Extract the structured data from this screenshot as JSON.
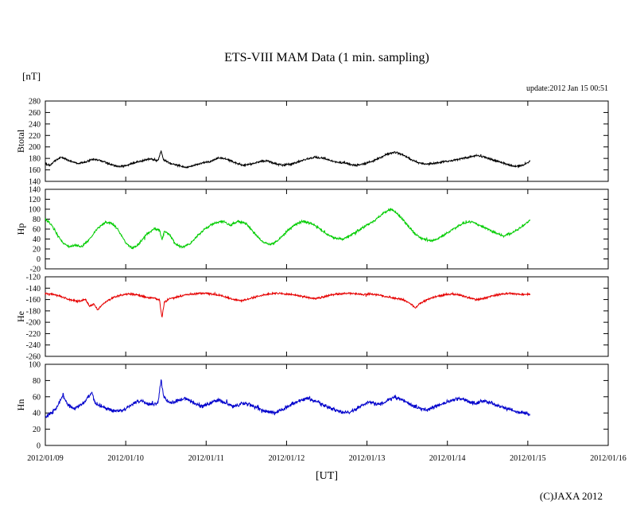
{
  "figure": {
    "title": "ETS-VIII MAM Data (1 min. sampling)",
    "unit_label": "[nT]",
    "update_label": "update:2012 Jan 15 00:51",
    "xaxis_label": "[UT]",
    "copyright": "(C)JAXA 2012"
  },
  "chart_data": {
    "type": "line",
    "title": "ETS-VIII MAM Data (1 min. sampling)",
    "xlabel": "[UT]",
    "ylabel": "[nT]",
    "grid": false,
    "legend_position": "none",
    "x_tick_labels": [
      "2012/01/09",
      "2012/01/10",
      "2012/01/11",
      "2012/01/12",
      "2012/01/13",
      "2012/01/14",
      "2012/01/15",
      "2012/01/16"
    ],
    "x_range_days": [
      0,
      7
    ],
    "data_end_day": 6.03,
    "panels": [
      {
        "name": "Btotal",
        "color": "#000000",
        "ylim": [
          140,
          280
        ],
        "ytick_step": 20,
        "noise": 2.0,
        "points": [
          [
            0.0,
            171
          ],
          [
            0.06,
            168
          ],
          [
            0.12,
            176
          ],
          [
            0.2,
            182
          ],
          [
            0.3,
            176
          ],
          [
            0.4,
            171
          ],
          [
            0.5,
            174
          ],
          [
            0.6,
            179
          ],
          [
            0.7,
            176
          ],
          [
            0.8,
            170
          ],
          [
            0.9,
            166
          ],
          [
            1.0,
            167
          ],
          [
            1.1,
            172
          ],
          [
            1.2,
            176
          ],
          [
            1.3,
            179
          ],
          [
            1.4,
            176
          ],
          [
            1.44,
            193
          ],
          [
            1.47,
            178
          ],
          [
            1.55,
            171
          ],
          [
            1.65,
            168
          ],
          [
            1.75,
            164
          ],
          [
            1.85,
            168
          ],
          [
            1.95,
            172
          ],
          [
            2.05,
            174
          ],
          [
            2.15,
            181
          ],
          [
            2.25,
            179
          ],
          [
            2.35,
            173
          ],
          [
            2.45,
            168
          ],
          [
            2.55,
            170
          ],
          [
            2.65,
            174
          ],
          [
            2.75,
            176
          ],
          [
            2.85,
            171
          ],
          [
            2.95,
            168
          ],
          [
            3.05,
            170
          ],
          [
            3.15,
            174
          ],
          [
            3.25,
            179
          ],
          [
            3.35,
            182
          ],
          [
            3.45,
            181
          ],
          [
            3.55,
            176
          ],
          [
            3.65,
            173
          ],
          [
            3.75,
            171
          ],
          [
            3.85,
            168
          ],
          [
            3.95,
            170
          ],
          [
            4.05,
            174
          ],
          [
            4.15,
            180
          ],
          [
            4.25,
            188
          ],
          [
            4.35,
            191
          ],
          [
            4.45,
            186
          ],
          [
            4.55,
            178
          ],
          [
            4.65,
            172
          ],
          [
            4.75,
            170
          ],
          [
            4.85,
            172
          ],
          [
            4.95,
            174
          ],
          [
            5.05,
            176
          ],
          [
            5.15,
            179
          ],
          [
            5.25,
            182
          ],
          [
            5.35,
            185
          ],
          [
            5.45,
            183
          ],
          [
            5.55,
            178
          ],
          [
            5.65,
            174
          ],
          [
            5.75,
            169
          ],
          [
            5.85,
            166
          ],
          [
            5.95,
            169
          ],
          [
            6.03,
            175
          ]
        ]
      },
      {
        "name": "Hp",
        "color": "#00cc00",
        "ylim": [
          -20,
          140
        ],
        "ytick_step": 20,
        "noise": 2.8,
        "points": [
          [
            0.0,
            80
          ],
          [
            0.08,
            68
          ],
          [
            0.15,
            48
          ],
          [
            0.22,
            32
          ],
          [
            0.3,
            25
          ],
          [
            0.38,
            28
          ],
          [
            0.45,
            24
          ],
          [
            0.55,
            40
          ],
          [
            0.65,
            62
          ],
          [
            0.75,
            74
          ],
          [
            0.82,
            72
          ],
          [
            0.9,
            60
          ],
          [
            1.0,
            32
          ],
          [
            1.08,
            22
          ],
          [
            1.15,
            28
          ],
          [
            1.25,
            48
          ],
          [
            1.35,
            60
          ],
          [
            1.42,
            58
          ],
          [
            1.45,
            38
          ],
          [
            1.48,
            55
          ],
          [
            1.55,
            48
          ],
          [
            1.62,
            30
          ],
          [
            1.7,
            24
          ],
          [
            1.8,
            30
          ],
          [
            1.9,
            48
          ],
          [
            2.0,
            62
          ],
          [
            2.1,
            72
          ],
          [
            2.2,
            76
          ],
          [
            2.3,
            68
          ],
          [
            2.4,
            76
          ],
          [
            2.5,
            70
          ],
          [
            2.6,
            52
          ],
          [
            2.7,
            34
          ],
          [
            2.8,
            28
          ],
          [
            2.9,
            38
          ],
          [
            3.0,
            55
          ],
          [
            3.1,
            68
          ],
          [
            3.2,
            76
          ],
          [
            3.3,
            72
          ],
          [
            3.4,
            62
          ],
          [
            3.5,
            50
          ],
          [
            3.6,
            42
          ],
          [
            3.7,
            40
          ],
          [
            3.8,
            48
          ],
          [
            3.9,
            58
          ],
          [
            4.0,
            68
          ],
          [
            4.1,
            78
          ],
          [
            4.2,
            92
          ],
          [
            4.3,
            100
          ],
          [
            4.4,
            88
          ],
          [
            4.5,
            68
          ],
          [
            4.6,
            50
          ],
          [
            4.7,
            40
          ],
          [
            4.8,
            36
          ],
          [
            4.9,
            42
          ],
          [
            5.0,
            52
          ],
          [
            5.1,
            62
          ],
          [
            5.2,
            72
          ],
          [
            5.3,
            75
          ],
          [
            5.4,
            68
          ],
          [
            5.5,
            60
          ],
          [
            5.6,
            52
          ],
          [
            5.7,
            46
          ],
          [
            5.8,
            52
          ],
          [
            5.9,
            62
          ],
          [
            6.03,
            78
          ]
        ]
      },
      {
        "name": "He",
        "color": "#e60000",
        "ylim": [
          -260,
          -120
        ],
        "ytick_step": 20,
        "noise": 2.0,
        "points": [
          [
            0.0,
            -149
          ],
          [
            0.1,
            -151
          ],
          [
            0.2,
            -155
          ],
          [
            0.3,
            -160
          ],
          [
            0.4,
            -163
          ],
          [
            0.5,
            -160
          ],
          [
            0.55,
            -172
          ],
          [
            0.6,
            -168
          ],
          [
            0.65,
            -178
          ],
          [
            0.7,
            -170
          ],
          [
            0.78,
            -162
          ],
          [
            0.85,
            -156
          ],
          [
            0.95,
            -152
          ],
          [
            1.05,
            -150
          ],
          [
            1.15,
            -152
          ],
          [
            1.25,
            -156
          ],
          [
            1.35,
            -158
          ],
          [
            1.42,
            -160
          ],
          [
            1.45,
            -192
          ],
          [
            1.48,
            -165
          ],
          [
            1.55,
            -158
          ],
          [
            1.65,
            -155
          ],
          [
            1.75,
            -152
          ],
          [
            1.85,
            -150
          ],
          [
            1.95,
            -149
          ],
          [
            2.05,
            -150
          ],
          [
            2.15,
            -152
          ],
          [
            2.25,
            -156
          ],
          [
            2.35,
            -160
          ],
          [
            2.45,
            -162
          ],
          [
            2.55,
            -158
          ],
          [
            2.65,
            -154
          ],
          [
            2.75,
            -151
          ],
          [
            2.85,
            -149
          ],
          [
            2.95,
            -150
          ],
          [
            3.05,
            -151
          ],
          [
            3.15,
            -153
          ],
          [
            3.25,
            -156
          ],
          [
            3.35,
            -158
          ],
          [
            3.45,
            -156
          ],
          [
            3.55,
            -152
          ],
          [
            3.65,
            -150
          ],
          [
            3.75,
            -149
          ],
          [
            3.85,
            -150
          ],
          [
            3.95,
            -151
          ],
          [
            4.05,
            -150
          ],
          [
            4.15,
            -152
          ],
          [
            4.25,
            -155
          ],
          [
            4.35,
            -158
          ],
          [
            4.45,
            -160
          ],
          [
            4.55,
            -168
          ],
          [
            4.6,
            -175
          ],
          [
            4.65,
            -168
          ],
          [
            4.75,
            -160
          ],
          [
            4.85,
            -155
          ],
          [
            4.95,
            -152
          ],
          [
            5.05,
            -150
          ],
          [
            5.15,
            -152
          ],
          [
            5.25,
            -156
          ],
          [
            5.35,
            -160
          ],
          [
            5.45,
            -158
          ],
          [
            5.55,
            -154
          ],
          [
            5.65,
            -151
          ],
          [
            5.75,
            -149
          ],
          [
            5.85,
            -150
          ],
          [
            5.95,
            -151
          ],
          [
            6.03,
            -151
          ]
        ]
      },
      {
        "name": "Hn",
        "color": "#0000cc",
        "ylim": [
          0,
          100
        ],
        "ytick_step": 20,
        "noise": 2.8,
        "points": [
          [
            0.0,
            35
          ],
          [
            0.08,
            40
          ],
          [
            0.15,
            48
          ],
          [
            0.22,
            62
          ],
          [
            0.28,
            50
          ],
          [
            0.35,
            45
          ],
          [
            0.42,
            48
          ],
          [
            0.5,
            55
          ],
          [
            0.58,
            65
          ],
          [
            0.62,
            52
          ],
          [
            0.7,
            48
          ],
          [
            0.8,
            44
          ],
          [
            0.9,
            42
          ],
          [
            1.0,
            45
          ],
          [
            1.1,
            52
          ],
          [
            1.2,
            55
          ],
          [
            1.3,
            50
          ],
          [
            1.4,
            52
          ],
          [
            1.44,
            80
          ],
          [
            1.47,
            60
          ],
          [
            1.55,
            52
          ],
          [
            1.65,
            55
          ],
          [
            1.75,
            58
          ],
          [
            1.85,
            52
          ],
          [
            1.95,
            48
          ],
          [
            2.05,
            52
          ],
          [
            2.15,
            56
          ],
          [
            2.25,
            52
          ],
          [
            2.35,
            48
          ],
          [
            2.45,
            52
          ],
          [
            2.55,
            50
          ],
          [
            2.65,
            46
          ],
          [
            2.75,
            42
          ],
          [
            2.85,
            40
          ],
          [
            2.95,
            44
          ],
          [
            3.05,
            50
          ],
          [
            3.15,
            55
          ],
          [
            3.25,
            58
          ],
          [
            3.35,
            55
          ],
          [
            3.45,
            50
          ],
          [
            3.55,
            46
          ],
          [
            3.65,
            42
          ],
          [
            3.75,
            40
          ],
          [
            3.85,
            44
          ],
          [
            3.95,
            50
          ],
          [
            4.05,
            54
          ],
          [
            4.15,
            50
          ],
          [
            4.25,
            55
          ],
          [
            4.35,
            60
          ],
          [
            4.45,
            55
          ],
          [
            4.55,
            50
          ],
          [
            4.65,
            46
          ],
          [
            4.75,
            44
          ],
          [
            4.85,
            48
          ],
          [
            4.95,
            52
          ],
          [
            5.05,
            56
          ],
          [
            5.15,
            58
          ],
          [
            5.25,
            55
          ],
          [
            5.35,
            52
          ],
          [
            5.45,
            55
          ],
          [
            5.55,
            52
          ],
          [
            5.65,
            48
          ],
          [
            5.75,
            45
          ],
          [
            5.85,
            42
          ],
          [
            5.95,
            40
          ],
          [
            6.03,
            39
          ]
        ]
      }
    ]
  }
}
